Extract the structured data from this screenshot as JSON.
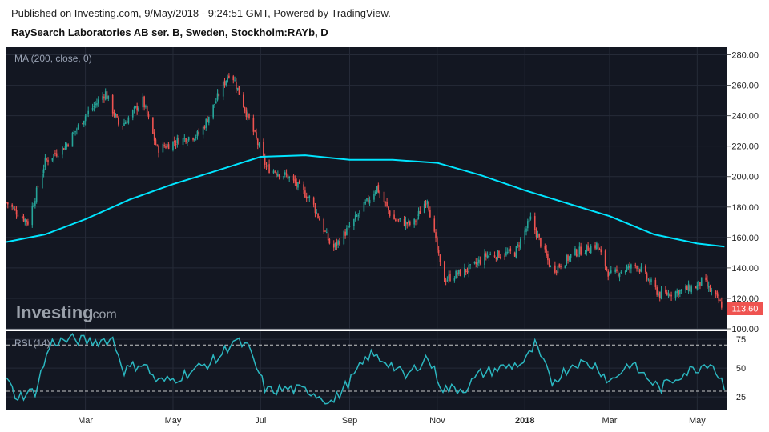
{
  "header": {
    "published": "Published on Investing.com, 9/May/2018 - 9:24:51 GMT, Powered by TradingView.",
    "title": "RaySearch Laboratories AB ser. B, Sweden, Stockholm:RAYb, D"
  },
  "watermark": {
    "brand": "Investing",
    "suffix": ".com"
  },
  "colors": {
    "background": "#131722",
    "up": "#26a69a",
    "down": "#ef5350",
    "ma": "#00e5ff",
    "rsi": "#2bb7c0",
    "price_label_bg": "#ef5350"
  },
  "chart_data": [
    {
      "type": "candlestick",
      "legend": "MA (200, close, 0)",
      "ylim": [
        100,
        285
      ],
      "y_ticks": [
        "280.00",
        "260.00",
        "240.00",
        "220.00",
        "200.00",
        "180.00",
        "160.00",
        "140.00",
        "120.00",
        "100.00"
      ],
      "last_price": "113.60",
      "x_labels": [
        "Mar",
        "May",
        "Jul",
        "Sep",
        "Nov",
        "2018",
        "Mar",
        "May"
      ],
      "x_label_dates": [
        "2017-03-01",
        "2017-05-01",
        "2017-07-01",
        "2017-09-01",
        "2017-11-01",
        "2018-01-01",
        "2018-03-01",
        "2018-05-01"
      ],
      "x_range": [
        "2017-01-05",
        "2018-05-22"
      ],
      "close_path": [
        [
          "2017-01-05",
          183
        ],
        [
          "2017-01-20",
          170
        ],
        [
          "2017-02-01",
          210
        ],
        [
          "2017-02-15",
          220
        ],
        [
          "2017-03-01",
          240
        ],
        [
          "2017-03-15",
          255
        ],
        [
          "2017-03-25",
          232
        ],
        [
          "2017-04-10",
          250
        ],
        [
          "2017-04-20",
          218
        ],
        [
          "2017-05-05",
          224
        ],
        [
          "2017-05-20",
          228
        ],
        [
          "2017-06-01",
          252
        ],
        [
          "2017-06-10",
          270
        ],
        [
          "2017-06-25",
          232
        ],
        [
          "2017-07-05",
          206
        ],
        [
          "2017-07-20",
          200
        ],
        [
          "2017-08-05",
          185
        ],
        [
          "2017-08-20",
          152
        ],
        [
          "2017-09-05",
          172
        ],
        [
          "2017-09-20",
          193
        ],
        [
          "2017-10-01",
          172
        ],
        [
          "2017-10-15",
          168
        ],
        [
          "2017-10-25",
          186
        ],
        [
          "2017-11-05",
          132
        ],
        [
          "2017-11-25",
          140
        ],
        [
          "2017-12-05",
          148
        ],
        [
          "2017-12-25",
          150
        ],
        [
          "2018-01-05",
          172
        ],
        [
          "2018-01-20",
          138
        ],
        [
          "2018-02-05",
          150
        ],
        [
          "2018-02-20",
          155
        ],
        [
          "2018-03-01",
          135
        ],
        [
          "2018-03-20",
          142
        ],
        [
          "2018-04-05",
          122
        ],
        [
          "2018-04-20",
          125
        ],
        [
          "2018-05-01",
          128
        ],
        [
          "2018-05-05",
          132
        ],
        [
          "2018-05-10",
          125
        ],
        [
          "2018-05-20",
          113.6
        ]
      ],
      "ma200": [
        [
          "2017-01-05",
          157
        ],
        [
          "2017-02-01",
          162
        ],
        [
          "2017-03-01",
          172
        ],
        [
          "2017-04-01",
          185
        ],
        [
          "2017-05-01",
          195
        ],
        [
          "2017-06-01",
          204
        ],
        [
          "2017-07-01",
          213
        ],
        [
          "2017-08-01",
          214
        ],
        [
          "2017-09-01",
          211
        ],
        [
          "2017-10-01",
          211
        ],
        [
          "2017-11-01",
          209
        ],
        [
          "2017-12-01",
          201
        ],
        [
          "2018-01-01",
          191
        ],
        [
          "2018-02-01",
          182
        ],
        [
          "2018-03-01",
          174
        ],
        [
          "2018-04-01",
          162
        ],
        [
          "2018-05-01",
          156
        ],
        [
          "2018-05-20",
          154
        ]
      ]
    },
    {
      "type": "line",
      "legend": "RSI (14)",
      "ylim": [
        14,
        82
      ],
      "y_ticks": [
        "75",
        "50",
        "25"
      ],
      "levels": [
        70,
        30
      ],
      "values": [
        [
          "2017-01-05",
          40
        ],
        [
          "2017-01-12",
          25
        ],
        [
          "2017-01-25",
          30
        ],
        [
          "2017-02-05",
          72
        ],
        [
          "2017-02-20",
          75
        ],
        [
          "2017-03-05",
          73
        ],
        [
          "2017-03-20",
          75
        ],
        [
          "2017-03-28",
          48
        ],
        [
          "2017-04-10",
          55
        ],
        [
          "2017-04-20",
          38
        ],
        [
          "2017-05-01",
          40
        ],
        [
          "2017-05-15",
          48
        ],
        [
          "2017-06-01",
          58
        ],
        [
          "2017-06-12",
          74
        ],
        [
          "2017-06-22",
          68
        ],
        [
          "2017-07-05",
          30
        ],
        [
          "2017-07-20",
          32
        ],
        [
          "2017-08-05",
          30
        ],
        [
          "2017-08-20",
          20
        ],
        [
          "2017-09-05",
          45
        ],
        [
          "2017-09-15",
          62
        ],
        [
          "2017-09-28",
          55
        ],
        [
          "2017-10-10",
          42
        ],
        [
          "2017-10-25",
          60
        ],
        [
          "2017-11-05",
          32
        ],
        [
          "2017-11-20",
          32
        ],
        [
          "2017-12-01",
          45
        ],
        [
          "2017-12-15",
          50
        ],
        [
          "2018-01-01",
          55
        ],
        [
          "2018-01-08",
          70
        ],
        [
          "2018-01-20",
          38
        ],
        [
          "2018-02-05",
          55
        ],
        [
          "2018-02-20",
          52
        ],
        [
          "2018-03-01",
          38
        ],
        [
          "2018-03-15",
          54
        ],
        [
          "2018-03-25",
          44
        ],
        [
          "2018-04-05",
          32
        ],
        [
          "2018-04-20",
          45
        ],
        [
          "2018-05-01",
          50
        ],
        [
          "2018-05-10",
          56
        ],
        [
          "2018-05-20",
          35
        ]
      ]
    }
  ]
}
